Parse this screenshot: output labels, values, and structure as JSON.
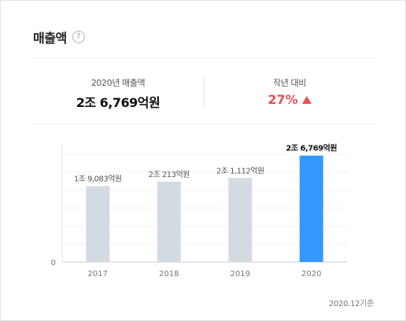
{
  "header": {
    "title": "매출액",
    "help_icon": "?"
  },
  "summary": {
    "left_label": "2020년 매출액",
    "left_value": "2조 6,769억원",
    "right_label": "작년 대비",
    "right_value": "27%",
    "right_icon": "triangle-up-icon",
    "accent_color": "#e85151"
  },
  "chart_data": {
    "type": "bar",
    "categories": [
      "2017",
      "2018",
      "2019",
      "2020"
    ],
    "values": [
      19083,
      20213,
      21112,
      26769
    ],
    "value_labels": [
      "1조 9,083억원",
      "2조 213억원",
      "2조 1,112억원",
      "2조 6,769억원"
    ],
    "ylim": [
      0,
      28500
    ],
    "y_ticks": [
      "0"
    ],
    "unit": "억원",
    "bar_colors": [
      "#d3dbe2",
      "#d3dbe2",
      "#d3dbe2",
      "#3399ff"
    ],
    "grid": true,
    "legend": "none"
  },
  "footnote": "2020.12기준"
}
